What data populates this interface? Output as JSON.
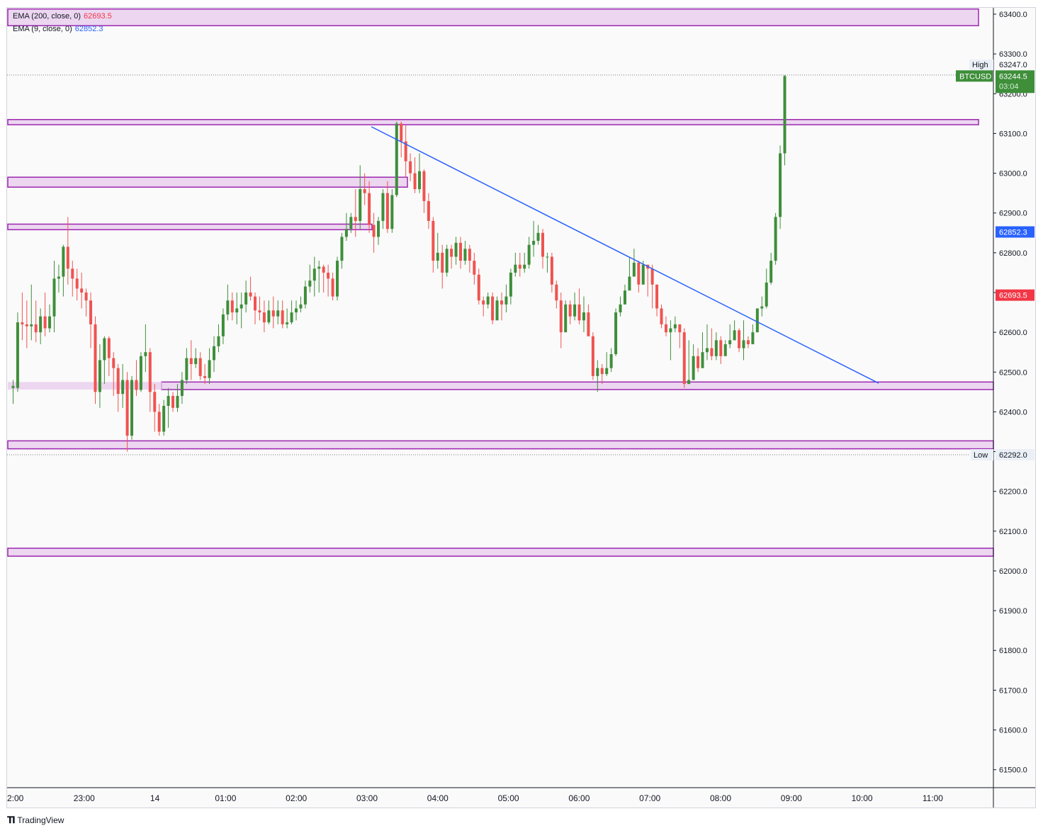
{
  "legend": {
    "ema200_label": "EMA (200, close, 0)",
    "ema200_value": "62693.5",
    "ema9_label": "EMA (9, close, 0)",
    "ema9_value": "62852.3"
  },
  "brand": "TradingView",
  "colors": {
    "up": "#3e8e3a",
    "down": "#ef5350",
    "zone_fill": "#e7c9ec",
    "zone_stroke": "#9c27b0",
    "trendline": "#2962ff",
    "ema200": "#f23645",
    "ema9": "#2962ff",
    "symbol_badge": "#3e8e3a"
  },
  "price_labels": {
    "high_tag": "High",
    "high_value": "63247.0",
    "symbol": "BTCUSD",
    "last_price": "63244.5",
    "countdown": "03:04",
    "ema9_tag": "62852.3",
    "ema200_tag": "62693.5",
    "low_tag": "Low",
    "low_value": "62292.0"
  },
  "chart_data": {
    "type": "candlestick",
    "symbol": "BTCUSD",
    "ylim": [
      61430,
      63425
    ],
    "y_ticks": [
      "63400.0",
      "63300.0",
      "63200.0",
      "63100.0",
      "63000.0",
      "62900.0",
      "62800.0",
      "62700.0",
      "62600.0",
      "62500.0",
      "62400.0",
      "62300.0",
      "62200.0",
      "62100.0",
      "62000.0",
      "61900.0",
      "61800.0",
      "61700.0",
      "61600.0",
      "61500.0"
    ],
    "x_ticks": [
      "2:00",
      "23:00",
      "14",
      "01:00",
      "02:00",
      "03:00",
      "04:00",
      "05:00",
      "06:00",
      "07:00",
      "08:00",
      "09:00",
      "10:00",
      "11:00"
    ],
    "zones": [
      {
        "from": 63371,
        "to": 63413,
        "extends_to_axis": false
      },
      {
        "from": 63122,
        "to": 63135,
        "extends_to_axis": false
      },
      {
        "from": 62965,
        "to": 62990,
        "extends_to_axis": false
      },
      {
        "from": 62858,
        "to": 62872,
        "extends_to_axis": false
      },
      {
        "from": 62456,
        "to": 62475,
        "extends_to_axis": true
      },
      {
        "from": 62307,
        "to": 62327,
        "extends_to_axis": true
      },
      {
        "from": 62037,
        "to": 62057,
        "extends_to_axis": true
      }
    ],
    "trendline": {
      "start_price": 63117,
      "end_price": 62472
    },
    "candles": [
      [
        62460,
        62465,
        62480,
        62420
      ],
      [
        62460,
        62625,
        62650,
        62450
      ],
      [
        62625,
        62620,
        62700,
        62580
      ],
      [
        62620,
        62615,
        62680,
        62560
      ],
      [
        62615,
        62620,
        62720,
        62580
      ],
      [
        62620,
        62600,
        62680,
        62575
      ],
      [
        62600,
        62640,
        62660,
        62570
      ],
      [
        62640,
        62610,
        62700,
        62590
      ],
      [
        62610,
        62640,
        62670,
        62600
      ],
      [
        62640,
        62735,
        62780,
        62600
      ],
      [
        62735,
        62740,
        62770,
        62700
      ],
      [
        62740,
        62815,
        62820,
        62690
      ],
      [
        62815,
        62760,
        62890,
        62720
      ],
      [
        62760,
        62735,
        62780,
        62690
      ],
      [
        62735,
        62710,
        62760,
        62680
      ],
      [
        62710,
        62700,
        62750,
        62660
      ],
      [
        62700,
        62680,
        62710,
        62640
      ],
      [
        62680,
        62620,
        62700,
        62560
      ],
      [
        62620,
        62450,
        62640,
        62420
      ],
      [
        62450,
        62530,
        62570,
        62410
      ],
      [
        62530,
        62585,
        62590,
        62470
      ],
      [
        62585,
        62535,
        62590,
        62490
      ],
      [
        62535,
        62510,
        62550,
        62440
      ],
      [
        62510,
        62445,
        62520,
        62400
      ],
      [
        62445,
        62480,
        62520,
        62410
      ],
      [
        62480,
        62340,
        62500,
        62300
      ],
      [
        62340,
        62480,
        62490,
        62330
      ],
      [
        62480,
        62455,
        62530,
        62440
      ],
      [
        62455,
        62540,
        62550,
        62450
      ],
      [
        62540,
        62550,
        62620,
        62500
      ],
      [
        62550,
        62450,
        62560,
        62400
      ],
      [
        62450,
        62400,
        62470,
        62350
      ],
      [
        62400,
        62350,
        62420,
        62340
      ],
      [
        62350,
        62415,
        62430,
        62340
      ],
      [
        62415,
        62440,
        62460,
        62360
      ],
      [
        62440,
        62410,
        62450,
        62400
      ],
      [
        62410,
        62440,
        62470,
        62400
      ],
      [
        62440,
        62480,
        62500,
        62420
      ],
      [
        62480,
        62535,
        62560,
        62470
      ],
      [
        62535,
        62520,
        62580,
        62480
      ],
      [
        62520,
        62535,
        62560,
        62510
      ],
      [
        62535,
        62490,
        62550,
        62480
      ],
      [
        62490,
        62485,
        62520,
        62470
      ],
      [
        62485,
        62530,
        62560,
        62470
      ],
      [
        62530,
        62565,
        62590,
        62500
      ],
      [
        62565,
        62590,
        62620,
        62550
      ],
      [
        62590,
        62645,
        62660,
        62570
      ],
      [
        62645,
        62680,
        62720,
        62630
      ],
      [
        62680,
        62650,
        62700,
        62630
      ],
      [
        62650,
        62660,
        62700,
        62620
      ],
      [
        62660,
        62670,
        62700,
        62610
      ],
      [
        62670,
        62700,
        62730,
        62650
      ],
      [
        62700,
        62690,
        62740,
        62680
      ],
      [
        62690,
        62655,
        62700,
        62620
      ],
      [
        62655,
        62650,
        62690,
        62630
      ],
      [
        62650,
        62625,
        62680,
        62600
      ],
      [
        62625,
        62655,
        62680,
        62620
      ],
      [
        62655,
        62640,
        62690,
        62610
      ],
      [
        62640,
        62655,
        62680,
        62620
      ],
      [
        62655,
        62620,
        62680,
        62610
      ],
      [
        62620,
        62625,
        62660,
        62610
      ],
      [
        62625,
        62650,
        62680,
        62620
      ],
      [
        62650,
        62660,
        62680,
        62630
      ],
      [
        62660,
        62670,
        62690,
        62650
      ],
      [
        62670,
        62715,
        62730,
        62660
      ],
      [
        62715,
        62730,
        62770,
        62700
      ],
      [
        62730,
        62760,
        62790,
        62690
      ],
      [
        62760,
        62765,
        62780,
        62700
      ],
      [
        62765,
        62750,
        62770,
        62700
      ],
      [
        62750,
        62735,
        62770,
        62690
      ],
      [
        62735,
        62690,
        62750,
        62680
      ],
      [
        62690,
        62780,
        62790,
        62680
      ],
      [
        62780,
        62840,
        62850,
        62760
      ],
      [
        62840,
        62860,
        62900,
        62830
      ],
      [
        62860,
        62890,
        62900,
        62850
      ],
      [
        62890,
        62880,
        62960,
        62840
      ],
      [
        62880,
        62960,
        63020,
        62860
      ],
      [
        62960,
        62950,
        63000,
        62920
      ],
      [
        62950,
        62870,
        62980,
        62850
      ],
      [
        62870,
        62840,
        62900,
        62800
      ],
      [
        62840,
        62880,
        62890,
        62820
      ],
      [
        62880,
        62950,
        62960,
        62860
      ],
      [
        62950,
        62860,
        62980,
        62850
      ],
      [
        62860,
        62945,
        62960,
        62850
      ],
      [
        62945,
        63125,
        63130,
        62940
      ],
      [
        63125,
        63080,
        63130,
        63040
      ],
      [
        63080,
        63030,
        63120,
        62990
      ],
      [
        63030,
        63000,
        63050,
        62980
      ],
      [
        63000,
        62960,
        63040,
        62950
      ],
      [
        62960,
        63005,
        63050,
        62950
      ],
      [
        63005,
        62930,
        63010,
        62900
      ],
      [
        62930,
        62880,
        62950,
        62860
      ],
      [
        62880,
        62780,
        62890,
        62750
      ],
      [
        62780,
        62800,
        62850,
        62760
      ],
      [
        62800,
        62750,
        62820,
        62710
      ],
      [
        62750,
        62810,
        62820,
        62740
      ],
      [
        62810,
        62790,
        62820,
        62760
      ],
      [
        62790,
        62825,
        62840,
        62770
      ],
      [
        62825,
        62780,
        62840,
        62760
      ],
      [
        62780,
        62810,
        62830,
        62770
      ],
      [
        62810,
        62780,
        62820,
        62750
      ],
      [
        62780,
        62745,
        62800,
        62720
      ],
      [
        62745,
        62680,
        62760,
        62670
      ],
      [
        62680,
        62670,
        62690,
        62640
      ],
      [
        62670,
        62690,
        62700,
        62660
      ],
      [
        62690,
        62630,
        62700,
        62620
      ],
      [
        62630,
        62680,
        62690,
        62640
      ],
      [
        62680,
        62670,
        62700,
        62630
      ],
      [
        62670,
        62690,
        62720,
        62650
      ],
      [
        62690,
        62750,
        62760,
        62670
      ],
      [
        62750,
        62770,
        62800,
        62740
      ],
      [
        62770,
        62760,
        62800,
        62740
      ],
      [
        62760,
        62770,
        62800,
        62750
      ],
      [
        62770,
        62820,
        62840,
        62760
      ],
      [
        62820,
        62830,
        62880,
        62790
      ],
      [
        62830,
        62850,
        62870,
        62820
      ],
      [
        62850,
        62790,
        62860,
        62760
      ],
      [
        62790,
        62790,
        62800,
        62750
      ],
      [
        62790,
        62720,
        62800,
        62700
      ],
      [
        62720,
        62680,
        62730,
        62660
      ],
      [
        62680,
        62600,
        62700,
        62560
      ],
      [
        62600,
        62670,
        62680,
        62640
      ],
      [
        62670,
        62640,
        62680,
        62620
      ],
      [
        62640,
        62670,
        62700,
        62630
      ],
      [
        62670,
        62630,
        62710,
        62620
      ],
      [
        62630,
        62650,
        62690,
        62600
      ],
      [
        62650,
        62590,
        62670,
        62590
      ],
      [
        62590,
        62490,
        62600,
        62480
      ],
      [
        62490,
        62510,
        62530,
        62450
      ],
      [
        62510,
        62495,
        62520,
        62470
      ],
      [
        62495,
        62510,
        62550,
        62490
      ],
      [
        62510,
        62545,
        62560,
        62500
      ],
      [
        62545,
        62650,
        62660,
        62540
      ],
      [
        62650,
        62670,
        62690,
        62640
      ],
      [
        62670,
        62705,
        62720,
        62680
      ],
      [
        62705,
        62740,
        62790,
        62720
      ],
      [
        62740,
        62775,
        62810,
        62740
      ],
      [
        62775,
        62720,
        62780,
        62700
      ],
      [
        62720,
        62770,
        62780,
        62760
      ],
      [
        62770,
        62760,
        62770,
        62690
      ],
      [
        62760,
        62720,
        62770,
        62660
      ],
      [
        62720,
        62660,
        62720,
        62640
      ],
      [
        62660,
        62620,
        62670,
        62610
      ],
      [
        62620,
        62600,
        62640,
        62590
      ],
      [
        62600,
        62610,
        62630,
        62530
      ],
      [
        62610,
        62620,
        62640,
        62600
      ],
      [
        62620,
        62600,
        62620,
        62560
      ],
      [
        62600,
        62470,
        62610,
        62460
      ],
      [
        62470,
        62480,
        62580,
        62470
      ],
      [
        62480,
        62540,
        62570,
        62500
      ],
      [
        62540,
        62510,
        62560,
        62500
      ],
      [
        62510,
        62550,
        62600,
        62510
      ],
      [
        62550,
        62560,
        62620,
        62530
      ],
      [
        62560,
        62540,
        62610,
        62530
      ],
      [
        62540,
        62580,
        62600,
        62530
      ],
      [
        62580,
        62540,
        62590,
        62520
      ],
      [
        62540,
        62570,
        62580,
        62550
      ],
      [
        62570,
        62580,
        62620,
        62560
      ],
      [
        62580,
        62605,
        62630,
        62580
      ],
      [
        62605,
        62560,
        62610,
        62550
      ],
      [
        62560,
        62580,
        62630,
        62530
      ],
      [
        62580,
        62570,
        62590,
        62560
      ],
      [
        62570,
        62600,
        62620,
        62580
      ],
      [
        62600,
        62660,
        62660,
        62600
      ],
      [
        62660,
        62665,
        62690,
        62640
      ],
      [
        62665,
        62725,
        62760,
        62660
      ],
      [
        62725,
        62780,
        62800,
        62720
      ],
      [
        62780,
        62890,
        62900,
        62770
      ],
      [
        62890,
        63050,
        63070,
        62860
      ],
      [
        63050,
        63244.5,
        63247,
        63020
      ]
    ]
  }
}
